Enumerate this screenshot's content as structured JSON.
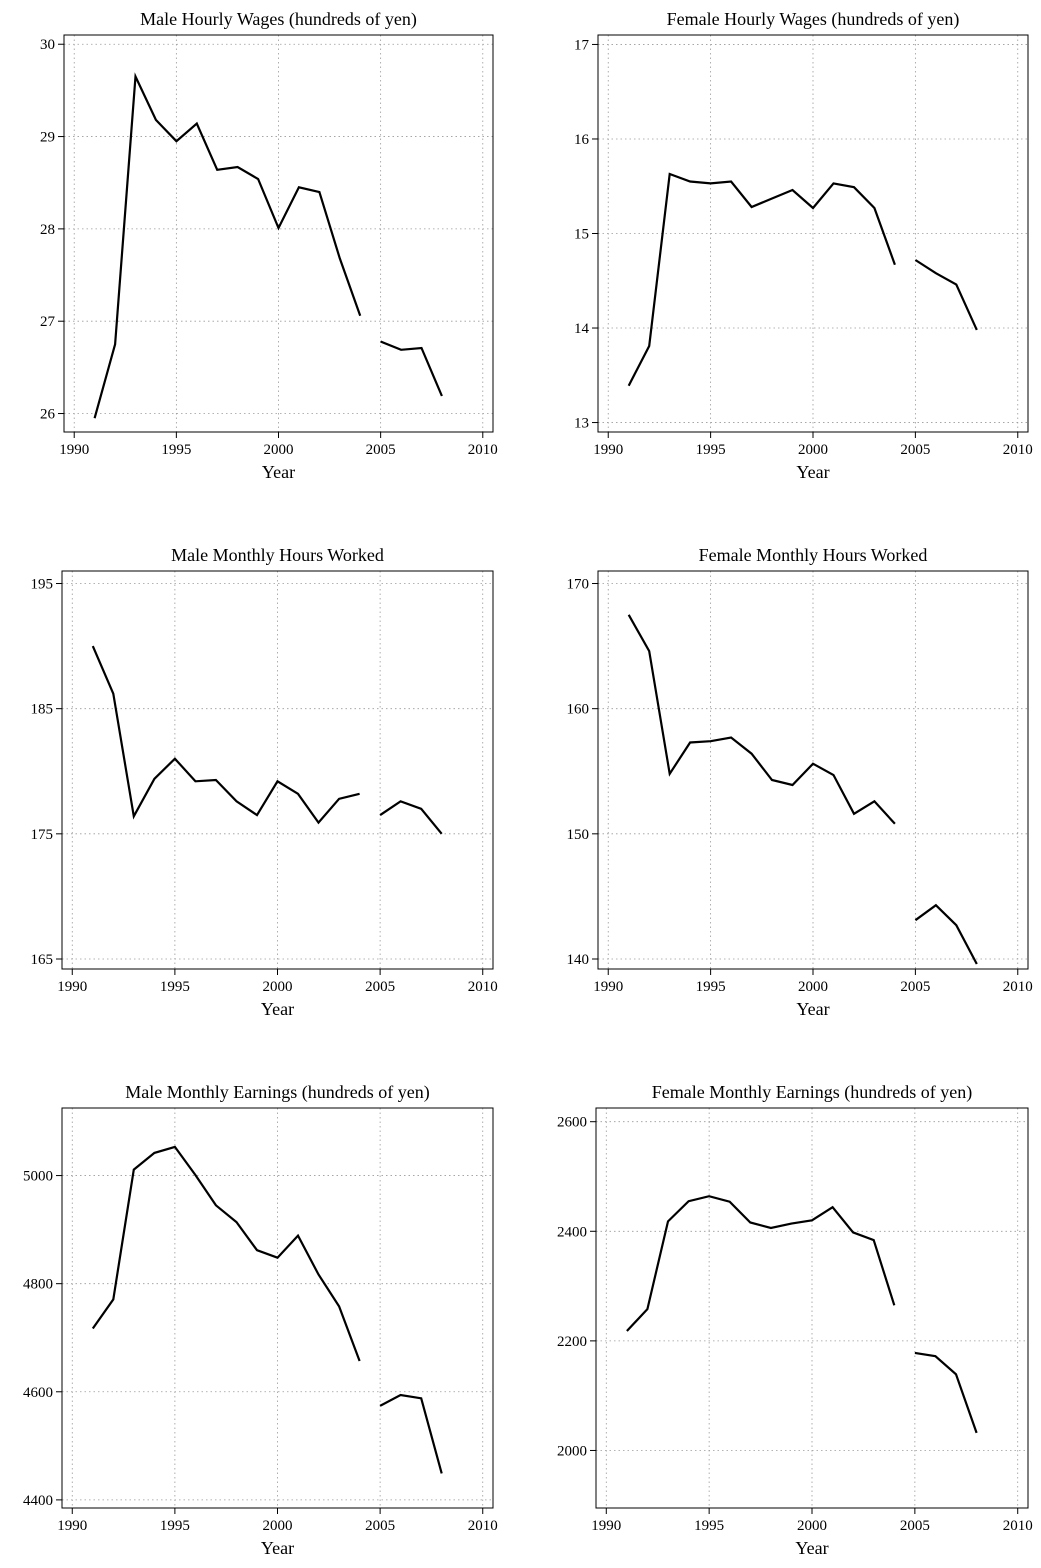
{
  "chart_data": [
    {
      "type": "line",
      "title": "Male Hourly Wages (hundreds of yen)",
      "xlabel": "Year",
      "ylabel": "",
      "xlim": [
        1989.5,
        2010.5
      ],
      "ylim": [
        25.8,
        30.1
      ],
      "xticks": [
        1990,
        1995,
        2000,
        2005,
        2010
      ],
      "yticks": [
        26,
        27,
        28,
        29,
        30
      ],
      "grid": true,
      "segments": [
        {
          "x": [
            1991,
            1992,
            1993,
            1994,
            1995,
            1996,
            1997,
            1998,
            1999,
            2000,
            2001,
            2002,
            2003,
            2004
          ],
          "y": [
            25.95,
            26.75,
            29.65,
            29.18,
            28.95,
            29.14,
            28.64,
            28.67,
            28.54,
            28.01,
            28.45,
            28.4,
            27.68,
            27.06
          ]
        },
        {
          "x": [
            2005,
            2006,
            2007,
            2008
          ],
          "y": [
            26.78,
            26.69,
            26.71,
            26.19
          ]
        }
      ]
    },
    {
      "type": "line",
      "title": "Female Hourly Wages (hundreds of yen)",
      "xlabel": "Year",
      "ylabel": "",
      "xlim": [
        1989.5,
        2010.5
      ],
      "ylim": [
        12.9,
        17.1
      ],
      "xticks": [
        1990,
        1995,
        2000,
        2005,
        2010
      ],
      "yticks": [
        13,
        14,
        15,
        16,
        17
      ],
      "grid": true,
      "segments": [
        {
          "x": [
            1991,
            1992,
            1993,
            1994,
            1995,
            1996,
            1997,
            1998,
            1999,
            2000,
            2001,
            2002,
            2003,
            2004
          ],
          "y": [
            13.39,
            13.81,
            15.63,
            15.55,
            15.53,
            15.55,
            15.28,
            15.37,
            15.46,
            15.27,
            15.53,
            15.49,
            15.27,
            14.67
          ]
        },
        {
          "x": [
            2005,
            2006,
            2007,
            2008
          ],
          "y": [
            14.72,
            14.58,
            14.46,
            13.98
          ]
        }
      ]
    },
    {
      "type": "line",
      "title": "Male Monthly Hours Worked",
      "xlabel": "Year",
      "ylabel": "",
      "xlim": [
        1989.5,
        2010.5
      ],
      "ylim": [
        164.2,
        196
      ],
      "xticks": [
        1990,
        1995,
        2000,
        2005,
        2010
      ],
      "yticks": [
        165,
        175,
        185,
        195
      ],
      "grid": true,
      "segments": [
        {
          "x": [
            1991,
            1992,
            1993,
            1994,
            1995,
            1996,
            1997,
            1998,
            1999,
            2000,
            2001,
            2002,
            2003,
            2004
          ],
          "y": [
            190.0,
            186.2,
            176.4,
            179.4,
            181.0,
            179.2,
            179.3,
            177.6,
            176.5,
            179.2,
            178.2,
            175.9,
            177.8,
            178.2
          ]
        },
        {
          "x": [
            2005,
            2006,
            2007,
            2008
          ],
          "y": [
            176.5,
            177.6,
            177.0,
            175.0
          ]
        }
      ]
    },
    {
      "type": "line",
      "title": "Female Monthly Hours Worked",
      "xlabel": "Year",
      "ylabel": "",
      "xlim": [
        1989.5,
        2010.5
      ],
      "ylim": [
        139.2,
        171
      ],
      "xticks": [
        1990,
        1995,
        2000,
        2005,
        2010
      ],
      "yticks": [
        140,
        150,
        160,
        170
      ],
      "grid": true,
      "segments": [
        {
          "x": [
            1991,
            1992,
            1993,
            1994,
            1995,
            1996,
            1997,
            1998,
            1999,
            2000,
            2001,
            2002,
            2003,
            2004
          ],
          "y": [
            167.5,
            164.6,
            154.8,
            157.3,
            157.4,
            157.7,
            156.4,
            154.3,
            153.9,
            155.6,
            154.7,
            151.6,
            152.6,
            150.8
          ]
        },
        {
          "x": [
            2005,
            2006,
            2007,
            2008
          ],
          "y": [
            143.1,
            144.3,
            142.7,
            139.6
          ]
        }
      ]
    },
    {
      "type": "line",
      "title": "Male Monthly Earnings (hundreds of yen)",
      "xlabel": "Year",
      "ylabel": "",
      "xlim": [
        1989.5,
        2010.5
      ],
      "ylim": [
        4385,
        5125
      ],
      "xticks": [
        1990,
        1995,
        2000,
        2005,
        2010
      ],
      "yticks": [
        4400,
        4600,
        4800,
        5000
      ],
      "grid": true,
      "segments": [
        {
          "x": [
            1991,
            1992,
            1993,
            1994,
            1995,
            1996,
            1997,
            1998,
            1999,
            2000,
            2001,
            2002,
            2003,
            2004
          ],
          "y": [
            4717,
            4771,
            5011,
            5042,
            5053,
            5001,
            4945,
            4914,
            4862,
            4848,
            4889,
            4817,
            4758,
            4657
          ]
        },
        {
          "x": [
            2005,
            2006,
            2007,
            2008
          ],
          "y": [
            4574,
            4594,
            4588,
            4449
          ]
        }
      ]
    },
    {
      "type": "line",
      "title": "Female Monthly Earnings (hundreds of yen)",
      "xlabel": "Year",
      "ylabel": "",
      "xlim": [
        1989.5,
        2010.5
      ],
      "ylim": [
        1895,
        2625
      ],
      "xticks": [
        1990,
        1995,
        2000,
        2005,
        2010
      ],
      "yticks": [
        2000,
        2200,
        2400,
        2600
      ],
      "grid": true,
      "segments": [
        {
          "x": [
            1991,
            1992,
            1993,
            1994,
            1995,
            1996,
            1997,
            1998,
            1999,
            2000,
            2001,
            2002,
            2003,
            2004
          ],
          "y": [
            2218,
            2258,
            2418,
            2455,
            2464,
            2454,
            2416,
            2406,
            2414,
            2420,
            2444,
            2398,
            2384,
            2265
          ]
        },
        {
          "x": [
            2005,
            2006,
            2007,
            2008
          ],
          "y": [
            2178,
            2172,
            2139,
            2032
          ]
        }
      ]
    }
  ]
}
